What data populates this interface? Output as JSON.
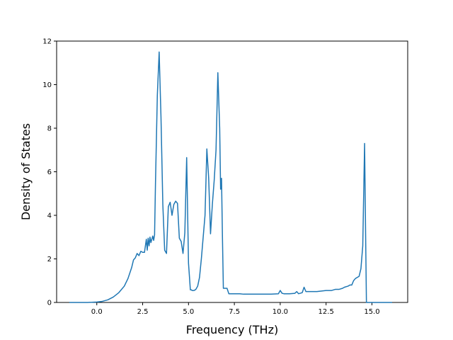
{
  "chart_data": {
    "type": "line",
    "title": "",
    "xlabel": "Frequency (THz)",
    "ylabel": "Density of States",
    "xlim": [
      -2.19,
      16.95
    ],
    "ylim": [
      0,
      12
    ],
    "xticks": [
      0.0,
      2.5,
      5.0,
      7.5,
      10.0,
      12.5,
      15.0
    ],
    "xtick_labels": [
      "0.0",
      "2.5",
      "5.0",
      "7.5",
      "10.0",
      "12.5",
      "15.0"
    ],
    "yticks": [
      0,
      2,
      4,
      6,
      8,
      10,
      12
    ],
    "ytick_labels": [
      "0",
      "2",
      "4",
      "6",
      "8",
      "10",
      "12"
    ],
    "grid": false,
    "series": [
      {
        "color": "#1f77b4",
        "x": [
          -1.5,
          -0.5,
          0.0,
          0.3,
          0.6,
          0.9,
          1.2,
          1.5,
          1.7,
          1.9,
          2.0,
          2.1,
          2.2,
          2.3,
          2.4,
          2.5,
          2.6,
          2.7,
          2.75,
          2.8,
          2.85,
          2.9,
          2.95,
          3.0,
          3.05,
          3.1,
          3.15,
          3.2,
          3.3,
          3.4,
          3.5,
          3.55,
          3.6,
          3.7,
          3.8,
          3.9,
          4.0,
          4.1,
          4.2,
          4.3,
          4.4,
          4.5,
          4.6,
          4.7,
          4.8,
          4.9,
          5.0,
          5.05,
          5.1,
          5.15,
          5.2,
          5.3,
          5.4,
          5.5,
          5.6,
          5.7,
          5.8,
          5.9,
          6.0,
          6.1,
          6.2,
          6.3,
          6.4,
          6.5,
          6.6,
          6.7,
          6.75,
          6.8,
          6.85,
          6.9,
          7.0,
          7.1,
          7.2,
          7.5,
          7.8,
          8.0,
          9.0,
          9.5,
          9.9,
          10.0,
          10.1,
          10.2,
          10.5,
          10.8,
          10.9,
          11.0,
          11.2,
          11.3,
          11.4,
          11.5,
          11.8,
          12.0,
          12.5,
          12.8,
          13.0,
          13.2,
          13.4,
          13.5,
          13.7,
          13.8,
          13.9,
          14.0,
          14.1,
          14.2,
          14.3,
          14.4,
          14.5,
          14.6,
          14.65,
          14.7,
          14.8,
          15.0,
          15.5,
          16.1
        ],
        "y": [
          0.0,
          0.0,
          0.02,
          0.05,
          0.12,
          0.25,
          0.45,
          0.75,
          1.1,
          1.6,
          1.95,
          2.05,
          2.25,
          2.15,
          2.35,
          2.3,
          2.3,
          2.9,
          2.4,
          2.95,
          2.6,
          3.0,
          2.75,
          2.9,
          3.05,
          2.85,
          3.1,
          5.5,
          9.5,
          11.5,
          8.5,
          6.5,
          4.5,
          2.4,
          2.25,
          4.4,
          4.6,
          4.0,
          4.5,
          4.65,
          4.55,
          2.95,
          2.8,
          2.25,
          3.2,
          6.65,
          1.8,
          1.2,
          0.58,
          0.58,
          0.55,
          0.55,
          0.6,
          0.75,
          1.15,
          2.0,
          3.0,
          4.0,
          7.05,
          5.7,
          3.15,
          4.5,
          5.6,
          7.0,
          10.55,
          8.0,
          5.2,
          5.7,
          3.0,
          0.65,
          0.65,
          0.65,
          0.4,
          0.4,
          0.4,
          0.38,
          0.38,
          0.38,
          0.4,
          0.55,
          0.42,
          0.4,
          0.4,
          0.42,
          0.5,
          0.4,
          0.45,
          0.7,
          0.5,
          0.5,
          0.5,
          0.5,
          0.55,
          0.55,
          0.6,
          0.6,
          0.65,
          0.7,
          0.75,
          0.8,
          0.8,
          1.0,
          1.1,
          1.15,
          1.2,
          1.55,
          2.6,
          7.3,
          3.5,
          0.0,
          0.0,
          0.0,
          0.0,
          0.0
        ]
      }
    ]
  }
}
